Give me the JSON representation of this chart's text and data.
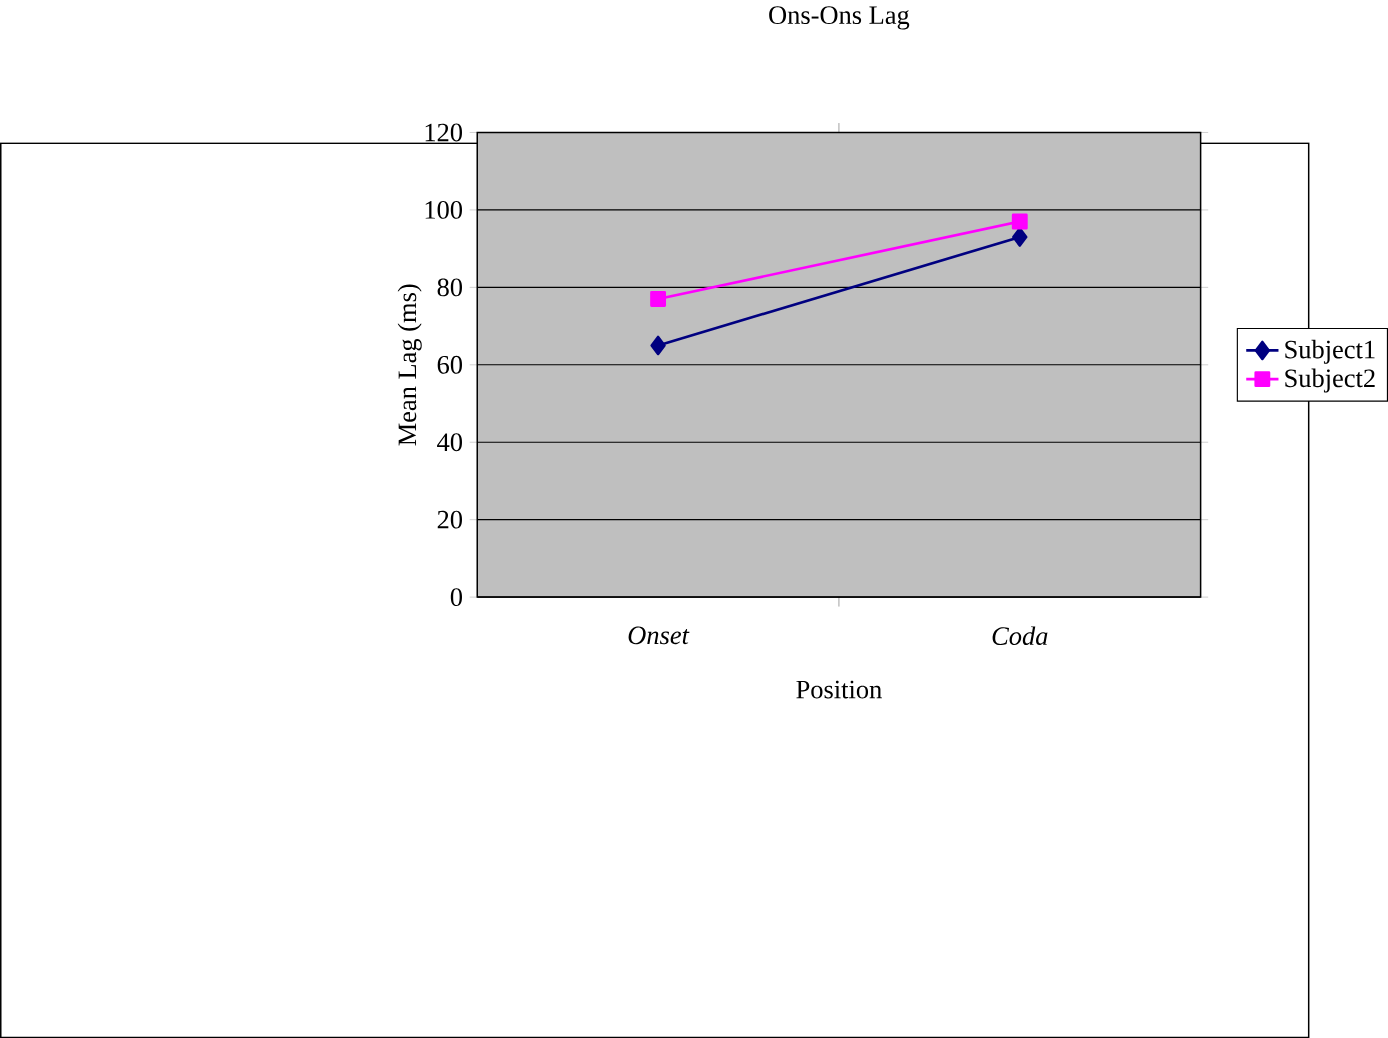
{
  "chart_data": {
    "type": "line",
    "title": "Ons-Ons Lag",
    "xlabel": "Position",
    "ylabel": "Mean Lag (ms)",
    "categories": [
      "Onset",
      "Coda"
    ],
    "series": [
      {
        "name": "Subject1",
        "color": "#000080",
        "marker": "diamond",
        "values": [
          65,
          93
        ]
      },
      {
        "name": "Subject2",
        "color": "#ff00ff",
        "marker": "square",
        "values": [
          77,
          97
        ]
      }
    ],
    "ylim": [
      0,
      120
    ],
    "yticks": [
      0,
      20,
      40,
      60,
      80,
      100,
      120
    ],
    "grid": "y",
    "legend": "right",
    "line_style": "solid"
  }
}
